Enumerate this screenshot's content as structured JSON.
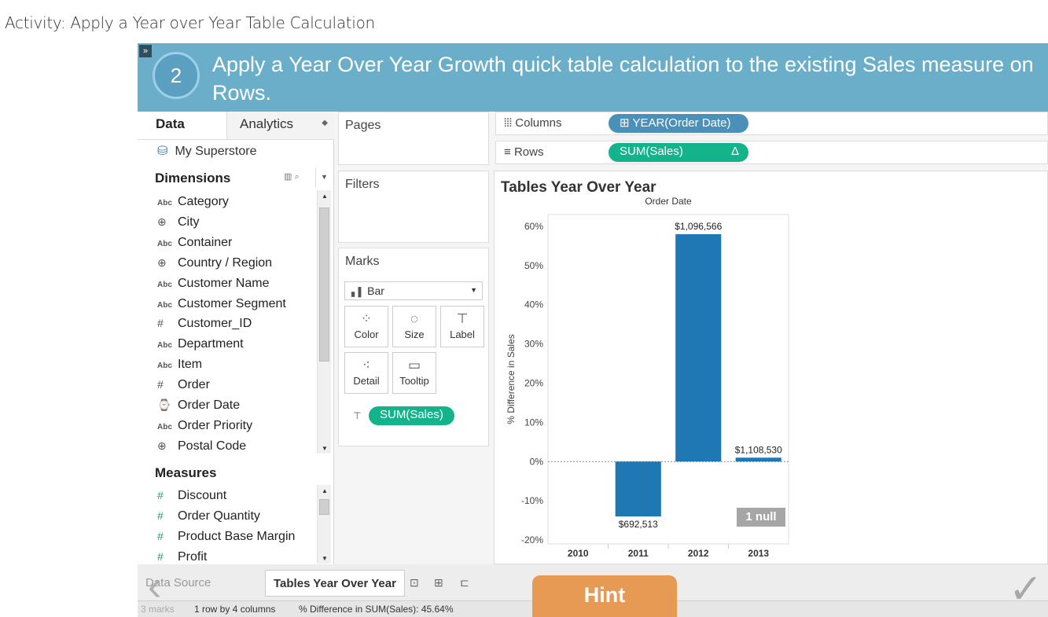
{
  "page_title": "Activity: Apply a Year over Year Table Calculation",
  "banner": {
    "expand_glyph": "»",
    "step_number": "2",
    "instruction": "Apply a Year Over Year Growth quick table calculation to the existing Sales measure on Rows."
  },
  "data_pane": {
    "tab_data": "Data",
    "tab_analytics": "Analytics",
    "data_source": "My Superstore",
    "dimensions_label": "Dimensions",
    "dimensions": [
      {
        "icon": "Abc",
        "label": "Category"
      },
      {
        "icon": "⊕",
        "label": "City"
      },
      {
        "icon": "Abc",
        "label": "Container"
      },
      {
        "icon": "⊕",
        "label": "Country / Region"
      },
      {
        "icon": "Abc",
        "label": "Customer Name"
      },
      {
        "icon": "Abc",
        "label": "Customer Segment"
      },
      {
        "icon": "#",
        "label": "Customer_ID"
      },
      {
        "icon": "Abc",
        "label": "Department"
      },
      {
        "icon": "Abc",
        "label": "Item"
      },
      {
        "icon": "#",
        "label": "Order"
      },
      {
        "icon": "⌚",
        "label": "Order Date"
      },
      {
        "icon": "Abc",
        "label": "Order Priority"
      },
      {
        "icon": "⊕",
        "label": "Postal Code"
      }
    ],
    "measures_label": "Measures",
    "measures": [
      {
        "icon": "#",
        "label": "Discount"
      },
      {
        "icon": "#",
        "label": "Order Quantity"
      },
      {
        "icon": "#",
        "label": "Product Base Margin"
      },
      {
        "icon": "#",
        "label": "Profit"
      }
    ]
  },
  "shelves": {
    "pages": "Pages",
    "filters": "Filters",
    "marks": "Marks",
    "mark_type": "Bar",
    "mark_buttons": [
      {
        "icon": "color-icon",
        "label": "Color"
      },
      {
        "icon": "size-icon",
        "label": "Size"
      },
      {
        "icon": "label-icon",
        "label": "Label"
      },
      {
        "icon": "detail-icon",
        "label": "Detail"
      },
      {
        "icon": "tooltip-icon",
        "label": "Tooltip"
      }
    ],
    "marks_pill": "SUM(Sales)",
    "columns_label": "Columns",
    "columns_pill": "⊞ YEAR(Order Date)",
    "rows_label": "Rows",
    "rows_pill": "SUM(Sales)",
    "rows_pill_delta": "Δ"
  },
  "view": {
    "title": "Tables Year Over Year",
    "null_badge": "1 null"
  },
  "chart_data": {
    "type": "bar",
    "title": "Order Date",
    "ylabel": "% Difference in Sales",
    "xlabel": "",
    "categories": [
      "2010",
      "2011",
      "2012",
      "2013"
    ],
    "values": [
      null,
      -14,
      58,
      1
    ],
    "data_labels": [
      "",
      "$692,513",
      "$1,096,566",
      "$1,108,530"
    ],
    "yticks": [
      "60%",
      "50%",
      "40%",
      "30%",
      "20%",
      "10%",
      "0%",
      "-10%",
      "-20%"
    ],
    "ylim": [
      -21,
      63
    ],
    "bar_color": "#1f77b4",
    "grid": false
  },
  "bottom": {
    "data_source_tab": "Data Source",
    "sheet_tab": "Tables Year Over Year",
    "status_marks": "3 marks",
    "status_rows": "1 row by 4 columns",
    "status_sum": "% Difference in SUM(Sales): 45.64%"
  },
  "hint_label": "Hint",
  "colors": {
    "banner": "#6aaec9",
    "hint": "#e69a53",
    "pill": "#13b38b",
    "bar": "#1f77b4"
  }
}
